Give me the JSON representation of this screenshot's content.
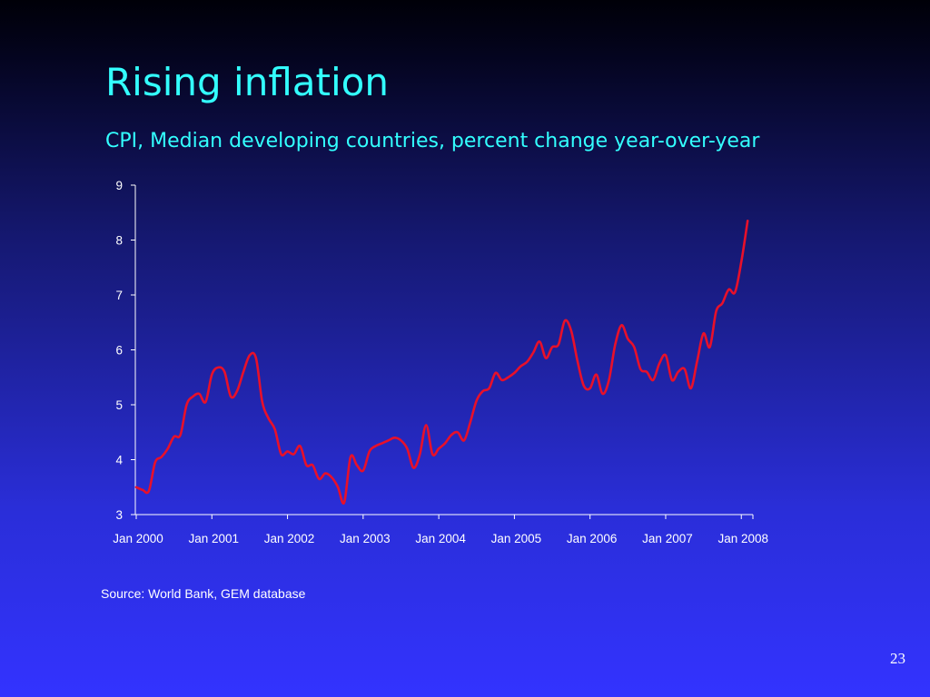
{
  "slide": {
    "title": "Rising inflation",
    "subtitle": "CPI, Median developing countries, percent change year-over-year",
    "source": "Source: World Bank, GEM database",
    "page_number": "23"
  },
  "colors": {
    "title": "#33ffff",
    "line": "#e8102a",
    "axis": "#ffffff"
  },
  "chart_data": {
    "type": "line",
    "title": "CPI, Median developing countries, percent change year-over-year",
    "xlabel": "",
    "ylabel": "",
    "ylim": [
      3,
      9
    ],
    "yticks": [
      3,
      4,
      5,
      6,
      7,
      8,
      9
    ],
    "x_tick_labels": [
      "Jan 2000",
      "Jan 2001",
      "Jan 2002",
      "Jan 2003",
      "Jan 2004",
      "Jan 2005",
      "Jan 2006",
      "Jan 2007",
      "Jan 2008"
    ],
    "grid": false,
    "legend": "none",
    "x_start": "Jan 2000",
    "x_end": "Apr 2008",
    "series": [
      {
        "values": [
          3.5,
          3.45,
          3.43,
          3.95,
          4.05,
          4.2,
          4.42,
          4.45,
          5.0,
          5.15,
          5.2,
          5.05,
          5.55,
          5.68,
          5.6,
          5.15,
          5.25,
          5.6,
          5.9,
          5.85,
          5.05,
          4.75,
          4.55,
          4.1,
          4.15,
          4.1,
          4.25,
          3.9,
          3.9,
          3.65,
          3.75,
          3.68,
          3.5,
          3.22,
          4.05,
          3.9,
          3.8,
          4.15,
          4.25,
          4.3,
          4.35,
          4.4,
          4.35,
          4.2,
          3.85,
          4.1,
          4.63,
          4.1,
          4.2,
          4.3,
          4.45,
          4.5,
          4.35,
          4.68,
          5.08,
          5.25,
          5.3,
          5.58,
          5.45,
          5.5,
          5.58,
          5.7,
          5.78,
          5.95,
          6.15,
          5.85,
          6.05,
          6.1,
          6.53,
          6.35,
          5.8,
          5.35,
          5.3,
          5.55,
          5.2,
          5.45,
          6.1,
          6.45,
          6.2,
          6.05,
          5.65,
          5.6,
          5.45,
          5.75,
          5.9,
          5.45,
          5.6,
          5.65,
          5.3,
          5.8,
          6.3,
          6.05,
          6.7,
          6.85,
          7.1,
          7.05,
          7.6,
          8.35
        ]
      }
    ]
  }
}
